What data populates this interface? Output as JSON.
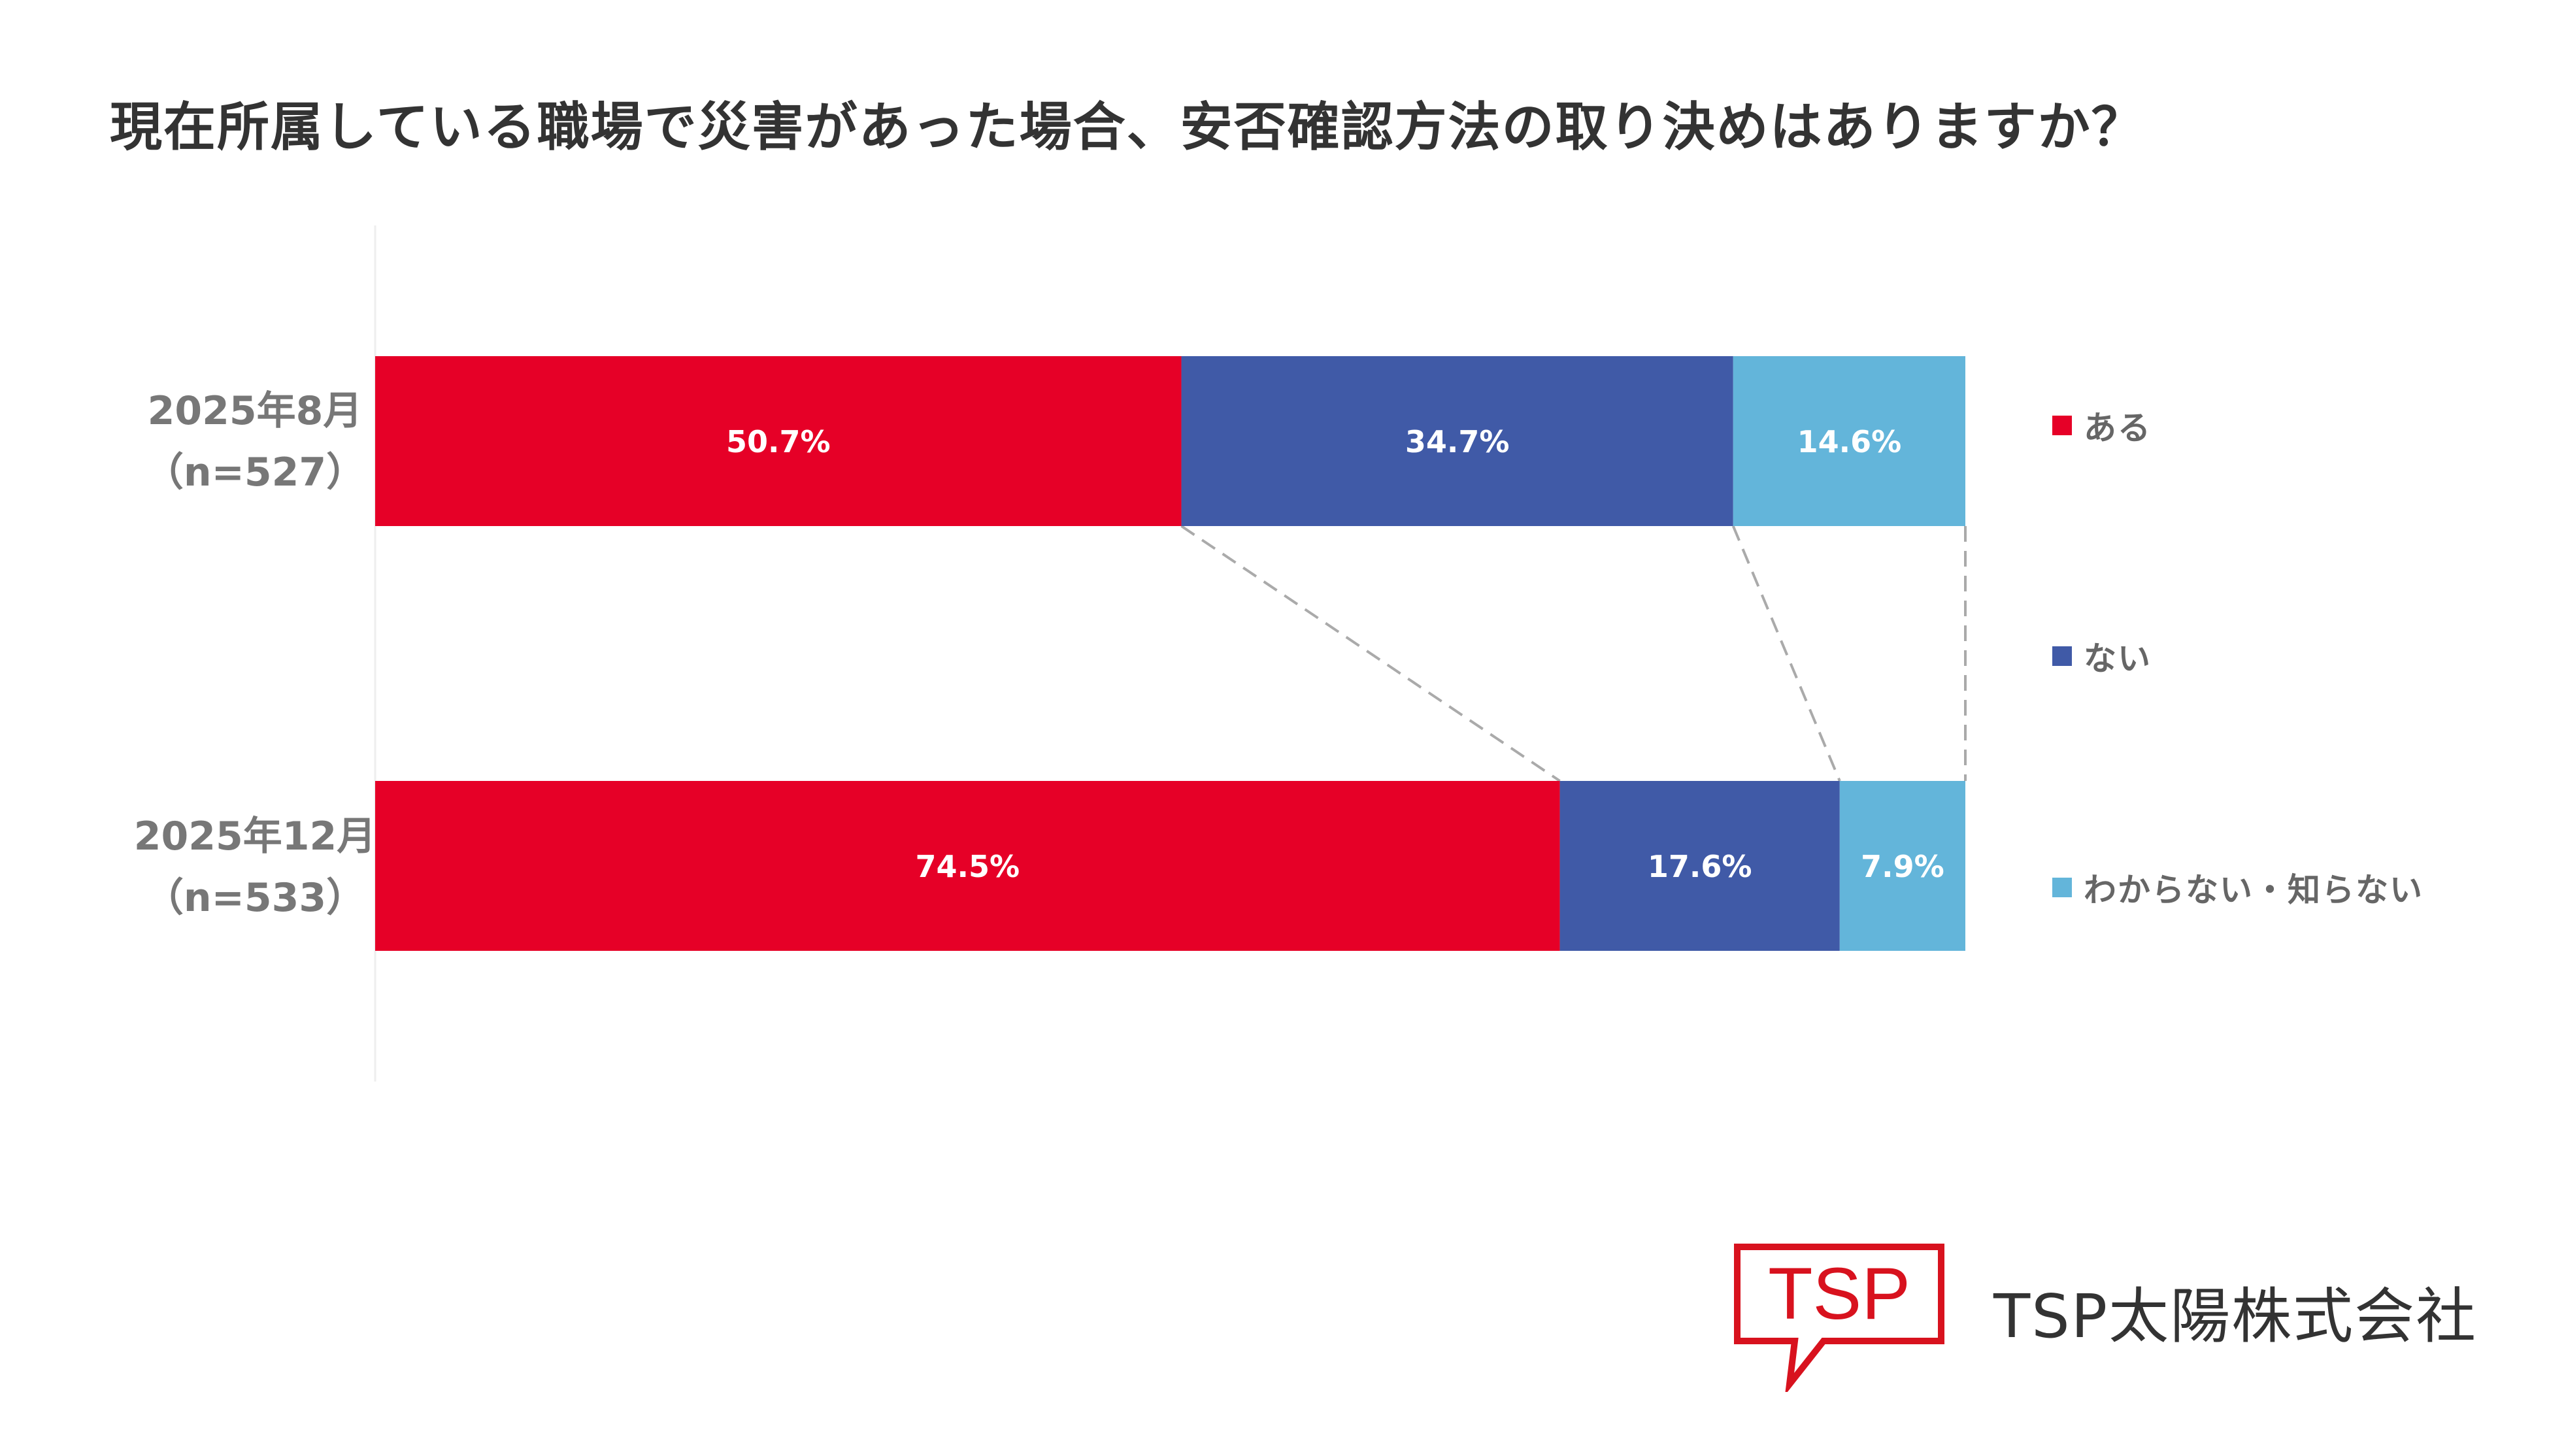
{
  "title": "現在所属している職場で災害があった場合、安否確認方法の取り決めはありますか？",
  "chart_data": {
    "type": "bar",
    "orientation": "horizontal-stacked-100",
    "categories": [
      {
        "line1": "2025年8月",
        "line2": "（n=527）"
      },
      {
        "line1": "2025年12月",
        "line2": "（n=533）"
      }
    ],
    "series": [
      {
        "name": "ある",
        "color": "#E60027",
        "values": [
          50.7,
          74.5
        ],
        "labels": [
          "50.7%",
          "74.5%"
        ]
      },
      {
        "name": "ない",
        "color": "#405AA7",
        "values": [
          34.7,
          17.6
        ],
        "labels": [
          "34.7%",
          "17.6%"
        ]
      },
      {
        "name": "わからない・知らない",
        "color": "#63B5DA",
        "values": [
          14.6,
          7.9
        ],
        "labels": [
          "14.6%",
          "7.9%"
        ]
      }
    ],
    "xlim": [
      0,
      100
    ],
    "connector_lines": true,
    "legend_position": "right"
  },
  "logo": {
    "mark_text": "TSP",
    "company_name": "TSP太陽株式会社",
    "brand_color": "#D8121E"
  }
}
